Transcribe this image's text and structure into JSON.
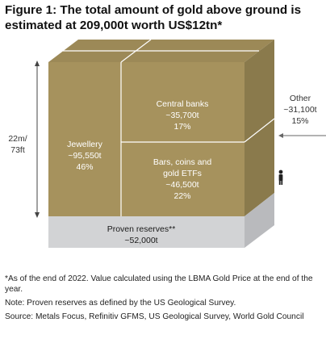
{
  "figure": {
    "title_line1": "Figure 1: The total amount of gold above ground is",
    "title_line2": "estimated at 209,000t worth US$12tn*"
  },
  "cube": {
    "colors": {
      "front": "#a6925d",
      "top": "#9c8957",
      "side": "#8a7a4c",
      "base_front": "#d2d3d5",
      "base_side": "#b9babd",
      "divider": "#ffffff",
      "label_text": "#ffffff",
      "base_text": "#1a1a1a"
    },
    "jewellery": {
      "name": "Jewellery",
      "amount": "~95,550t",
      "share": "46%"
    },
    "central_banks": {
      "name": "Central banks",
      "amount": "~35,700t",
      "share": "17%"
    },
    "bars_coins": {
      "name_line1": "Bars, coins and",
      "name_line2": "gold ETFs",
      "amount": "~46,500t",
      "share": "22%"
    },
    "other": {
      "name": "Other",
      "amount": "~31,100t",
      "share": "15%"
    },
    "proven_reserves": {
      "name": "Proven reserves**",
      "amount": "~52,000t"
    },
    "height": {
      "line1": "22m/",
      "line2": "73ft"
    },
    "person_icon": "person-icon"
  },
  "notes": {
    "note1": "*As of the end of 2022. Value calculated using the LBMA Gold Price at the end of the year.",
    "note2": "Note: Proven reserves as defined by the US Geological Survey.",
    "note3": "Source: Metals Focus, Refinitiv GFMS, US Geological Survey, World Gold Council"
  }
}
